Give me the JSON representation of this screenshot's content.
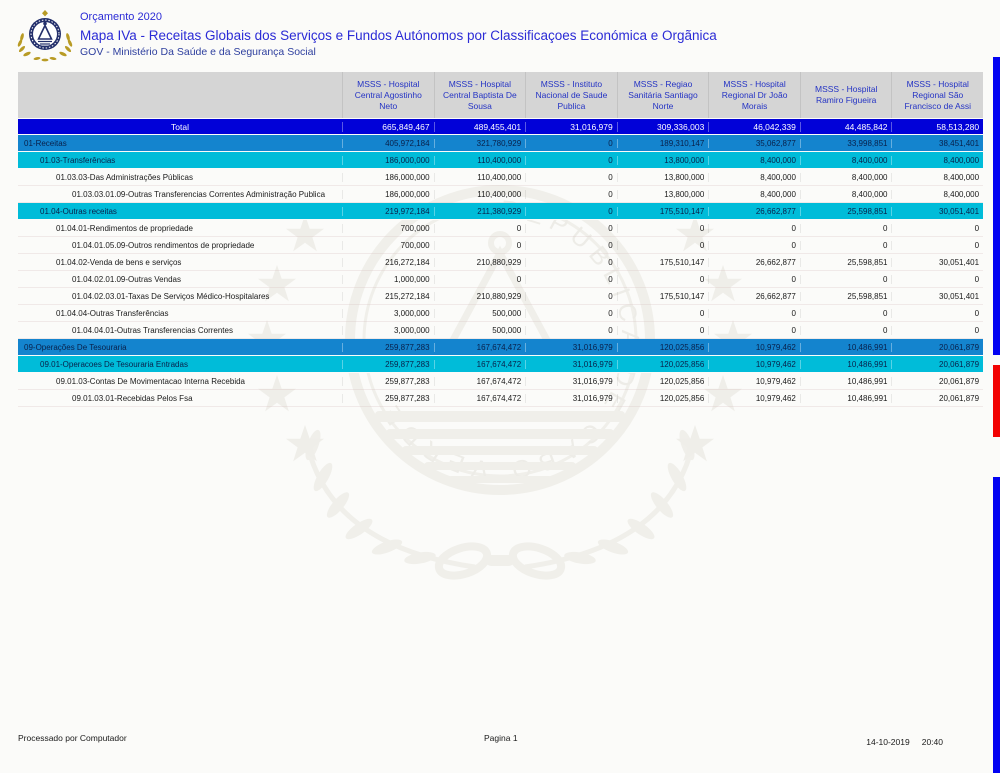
{
  "header": {
    "year": "Orçamento 2020",
    "title": "Mapa IVa - Receitas Globais dos Serviços e Fundos Autónomos por Classificaçoes Económica e Orgãnica",
    "org": "GOV - Ministério Da Saúde e da Segurança Social"
  },
  "icons": {
    "logo": "cabo-verde-coat-of-arms",
    "watermark": "cabo-verde-coat-of-arms-watermark"
  },
  "colors": {
    "total_row_bg": "#0101d8",
    "level1_row_bg": "#1484ce",
    "level2_row_bg": "#00bcd9",
    "header_bg": "#d5d5d5",
    "header_text": "#2433c4",
    "title_text": "#2b2bd6",
    "edge_bar_blue": "#0202f2",
    "edge_bar_red": "#f20202"
  },
  "table": {
    "columns": [
      "MSSS - Hospital Central Agostinho Neto",
      "MSSS - Hospital Central Baptista De Sousa",
      "MSSS - Instituto Nacional de Saude Publica",
      "MSSS - Regiao Sanitária Santiago Norte",
      "MSSS - Hospital Regional Dr João Morais",
      "MSSS - Hospital Ramiro Figueira",
      "MSSS - Hospital Regional São Francisco de Assi"
    ],
    "total_row": {
      "label": "Total",
      "values": [
        "665,849,467",
        "489,455,401",
        "31,016,979",
        "309,336,003",
        "46,042,339",
        "44,485,842",
        "58,513,280"
      ]
    },
    "rows": [
      {
        "label": "01-Receitas",
        "level": 1,
        "values": [
          "405,972,184",
          "321,780,929",
          "0",
          "189,310,147",
          "35,062,877",
          "33,998,851",
          "38,451,401"
        ]
      },
      {
        "label": "01.03-Transferências",
        "level": 2,
        "values": [
          "186,000,000",
          "110,400,000",
          "0",
          "13,800,000",
          "8,400,000",
          "8,400,000",
          "8,400,000"
        ]
      },
      {
        "label": "01.03.03-Das Administrações Públicas",
        "level": 3,
        "values": [
          "186,000,000",
          "110,400,000",
          "0",
          "13,800,000",
          "8,400,000",
          "8,400,000",
          "8,400,000"
        ]
      },
      {
        "label": "01.03.03.01.09-Outras Transferencias Correntes Administração Publica",
        "level": 4,
        "values": [
          "186,000,000",
          "110,400,000",
          "0",
          "13,800,000",
          "8,400,000",
          "8,400,000",
          "8,400,000"
        ]
      },
      {
        "label": "01.04-Outras receitas",
        "level": 2,
        "values": [
          "219,972,184",
          "211,380,929",
          "0",
          "175,510,147",
          "26,662,877",
          "25,598,851",
          "30,051,401"
        ]
      },
      {
        "label": "01.04.01-Rendimentos de propriedade",
        "level": 3,
        "values": [
          "700,000",
          "0",
          "0",
          "0",
          "0",
          "0",
          "0"
        ]
      },
      {
        "label": "01.04.01.05.09-Outros rendimentos de propriedade",
        "level": 4,
        "values": [
          "700,000",
          "0",
          "0",
          "0",
          "0",
          "0",
          "0"
        ]
      },
      {
        "label": "01.04.02-Venda de bens e serviços",
        "level": 3,
        "values": [
          "216,272,184",
          "210,880,929",
          "0",
          "175,510,147",
          "26,662,877",
          "25,598,851",
          "30,051,401"
        ]
      },
      {
        "label": "01.04.02.01.09-Outras Vendas",
        "level": 4,
        "values": [
          "1,000,000",
          "0",
          "0",
          "0",
          "0",
          "0",
          "0"
        ]
      },
      {
        "label": "01.04.02.03.01-Taxas De Serviços Médico-Hospitalares",
        "level": 4,
        "values": [
          "215,272,184",
          "210,880,929",
          "0",
          "175,510,147",
          "26,662,877",
          "25,598,851",
          "30,051,401"
        ]
      },
      {
        "label": "01.04.04-Outras Transferências",
        "level": 3,
        "values": [
          "3,000,000",
          "500,000",
          "0",
          "0",
          "0",
          "0",
          "0"
        ]
      },
      {
        "label": "01.04.04.01-Outras Transferencias Correntes",
        "level": 4,
        "values": [
          "3,000,000",
          "500,000",
          "0",
          "0",
          "0",
          "0",
          "0"
        ]
      },
      {
        "label": "09-Operações De Tesouraria",
        "level": 1,
        "values": [
          "259,877,283",
          "167,674,472",
          "31,016,979",
          "120,025,856",
          "10,979,462",
          "10,486,991",
          "20,061,879"
        ]
      },
      {
        "label": "09.01-Operacoes De Tesouraria Entradas",
        "level": 2,
        "values": [
          "259,877,283",
          "167,674,472",
          "31,016,979",
          "120,025,856",
          "10,979,462",
          "10,486,991",
          "20,061,879"
        ]
      },
      {
        "label": "09.01.03-Contas De Movimentacao Interna Recebida",
        "level": 3,
        "values": [
          "259,877,283",
          "167,674,472",
          "31,016,979",
          "120,025,856",
          "10,979,462",
          "10,486,991",
          "20,061,879"
        ]
      },
      {
        "label": "09.01.03.01-Recebidas Pelos Fsa",
        "level": 4,
        "values": [
          "259,877,283",
          "167,674,472",
          "31,016,979",
          "120,025,856",
          "10,979,462",
          "10,486,991",
          "20,061,879"
        ]
      }
    ]
  },
  "footer": {
    "processed": "Processado por Computador",
    "page": "Pagina 1",
    "date": "14-10-2019",
    "time": "20:40"
  }
}
